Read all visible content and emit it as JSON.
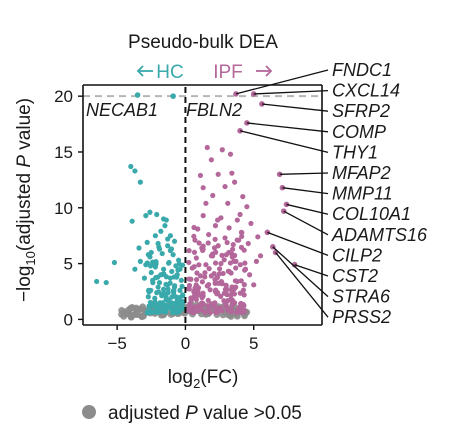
{
  "chart_data": {
    "type": "scatter",
    "title": "Pseudo-bulk DEA",
    "direction_labels": {
      "left": "HC",
      "right": "IPF"
    },
    "xlabel": {
      "prefix": "log",
      "sub": "2",
      "suffix": "(FC)"
    },
    "ylabel": {
      "prefix": "−log",
      "sub": "10",
      "mid": "(adjusted ",
      "ital": "P",
      "suffix": " value)"
    },
    "xlim": [
      -7.5,
      10
    ],
    "ylim": [
      -0.5,
      21
    ],
    "x_ticks": [
      -5,
      0,
      5
    ],
    "x_tick_labels": [
      "−5",
      "0",
      "5"
    ],
    "y_ticks": [
      0,
      5,
      10,
      15,
      20
    ],
    "y_tick_labels": [
      "0",
      "5",
      "10",
      "15",
      "20"
    ],
    "cap_line_y": 20,
    "colors": {
      "hc": "#3aa9ac",
      "ipf": "#b3679a",
      "nonsig": "#8c8c8c"
    },
    "legend": {
      "prefix": "adjusted ",
      "ital": "P",
      "suffix": " value >0.05"
    },
    "hc_highlight_points": [
      {
        "x": -3.5,
        "y": 20.1,
        "label": "NECAB1"
      },
      {
        "x": -0.9,
        "y": 20.0,
        "label": "FBLN2"
      }
    ],
    "ipf_labeled_points": [
      {
        "gene": "FNDC1",
        "x": 3.7,
        "y": 20.2
      },
      {
        "gene": "CXCL14",
        "x": 5.0,
        "y": 20.2
      },
      {
        "gene": "SFRP2",
        "x": 5.6,
        "y": 19.3
      },
      {
        "gene": "COMP",
        "x": 4.5,
        "y": 17.6
      },
      {
        "gene": "THY1",
        "x": 4.0,
        "y": 16.9
      },
      {
        "gene": "MFAP2",
        "x": 6.9,
        "y": 13.0
      },
      {
        "gene": "MMP11",
        "x": 7.1,
        "y": 11.8
      },
      {
        "gene": "COL10A1",
        "x": 7.4,
        "y": 10.3
      },
      {
        "gene": "ADAMTS16",
        "x": 7.2,
        "y": 9.7
      },
      {
        "gene": "CILP2",
        "x": 6.0,
        "y": 7.8
      },
      {
        "gene": "CST2",
        "x": 8.0,
        "y": 4.9
      },
      {
        "gene": "STRA6",
        "x": 6.4,
        "y": 6.5
      },
      {
        "gene": "PRSS2",
        "x": 6.6,
        "y": 6.0
      }
    ],
    "hc_points": [
      [
        -4.0,
        13.7
      ],
      [
        -3.7,
        13.3
      ],
      [
        -3.3,
        12.3
      ],
      [
        -2.9,
        9.3
      ],
      [
        -2.6,
        9.6
      ],
      [
        -3.9,
        8.8
      ],
      [
        -2.1,
        9.4
      ],
      [
        -1.6,
        9.0
      ],
      [
        -1.4,
        8.9
      ],
      [
        -1.5,
        8.4
      ],
      [
        -1.8,
        7.9
      ],
      [
        -2.2,
        7.5
      ],
      [
        -3.4,
        6.4
      ],
      [
        -3.3,
        5.2
      ],
      [
        -3.7,
        4.5
      ],
      [
        -5.2,
        5.1
      ],
      [
        -6.5,
        3.4
      ],
      [
        -5.8,
        3.3
      ],
      [
        -2.8,
        6.9
      ],
      [
        -2.0,
        6.8
      ],
      [
        -1.3,
        6.6
      ],
      [
        -2.5,
        6.0
      ],
      [
        -1.7,
        5.9
      ],
      [
        -0.9,
        5.8
      ],
      [
        -2.9,
        4.9
      ],
      [
        -2.2,
        4.7
      ],
      [
        -1.6,
        4.5
      ],
      [
        -1.0,
        4.3
      ],
      [
        -0.6,
        4.0
      ],
      [
        -0.3,
        3.5
      ],
      [
        -3.0,
        3.7
      ],
      [
        -2.4,
        3.5
      ],
      [
        -1.9,
        3.3
      ],
      [
        -1.3,
        3.1
      ],
      [
        -0.8,
        2.9
      ],
      [
        -0.4,
        2.6
      ],
      [
        -2.7,
        2.6
      ],
      [
        -2.1,
        2.4
      ],
      [
        -1.5,
        2.2
      ],
      [
        -1.0,
        2.0
      ],
      [
        -0.6,
        1.8
      ],
      [
        -0.2,
        1.6
      ],
      [
        -2.3,
        1.5
      ],
      [
        -1.8,
        1.3
      ],
      [
        -1.2,
        1.2
      ],
      [
        -0.7,
        1.1
      ],
      [
        -0.3,
        0.9
      ],
      [
        -1.4,
        0.9
      ],
      [
        -1.1,
        7.5
      ],
      [
        -1.3,
        7.2
      ],
      [
        -0.8,
        7.0
      ],
      [
        -1.9,
        6.3
      ],
      [
        -0.5,
        5.3
      ],
      [
        -2.6,
        5.6
      ],
      [
        -1.2,
        5.1
      ],
      [
        -0.7,
        4.8
      ],
      [
        -1.8,
        4.0
      ],
      [
        -2.5,
        4.2
      ],
      [
        -0.4,
        4.5
      ],
      [
        -1.1,
        3.7
      ],
      [
        -2.0,
        2.9
      ],
      [
        -1.6,
        2.7
      ],
      [
        -0.9,
        2.5
      ],
      [
        -0.2,
        2.2
      ],
      [
        -1.3,
        1.7
      ],
      [
        -0.5,
        1.4
      ]
    ],
    "ipf_points": [
      [
        2.7,
        15.2
      ],
      [
        3.3,
        14.8
      ],
      [
        1.6,
        15.4
      ],
      [
        1.9,
        14.3
      ],
      [
        1.3,
        11.8
      ],
      [
        3.4,
        13.1
      ],
      [
        2.4,
        13.0
      ],
      [
        1.1,
        12.9
      ],
      [
        3.6,
        12.3
      ],
      [
        2.9,
        11.9
      ],
      [
        4.2,
        11.0
      ],
      [
        2.0,
        11.1
      ],
      [
        3.1,
        10.4
      ],
      [
        1.5,
        10.4
      ],
      [
        4.5,
        10.1
      ],
      [
        5.3,
        7.4
      ],
      [
        5.5,
        5.7
      ],
      [
        3.8,
        8.9
      ],
      [
        2.6,
        9.1
      ],
      [
        1.3,
        9.3
      ],
      [
        3.2,
        8.2
      ],
      [
        2.2,
        8.4
      ],
      [
        0.9,
        8.1
      ],
      [
        4.1,
        7.8
      ],
      [
        2.9,
        7.3
      ],
      [
        1.7,
        7.6
      ],
      [
        0.7,
        7.1
      ],
      [
        3.5,
        6.7
      ],
      [
        2.4,
        6.6
      ],
      [
        1.2,
        6.4
      ],
      [
        4.3,
        6.2
      ],
      [
        3.0,
        5.8
      ],
      [
        1.9,
        5.7
      ],
      [
        0.8,
        5.5
      ],
      [
        3.7,
        5.2
      ],
      [
        2.6,
        5.0
      ],
      [
        1.5,
        4.9
      ],
      [
        0.5,
        4.6
      ],
      [
        4.4,
        4.5
      ],
      [
        3.2,
        4.3
      ],
      [
        2.1,
        4.1
      ],
      [
        1.1,
        3.9
      ],
      [
        0.4,
        3.6
      ],
      [
        3.8,
        3.4
      ],
      [
        2.7,
        3.2
      ],
      [
        1.6,
        3.0
      ],
      [
        0.7,
        2.8
      ],
      [
        3.4,
        2.5
      ],
      [
        2.3,
        2.3
      ],
      [
        1.3,
        2.1
      ],
      [
        0.5,
        1.9
      ],
      [
        2.9,
        1.6
      ],
      [
        1.9,
        1.4
      ],
      [
        0.9,
        1.2
      ],
      [
        0.3,
        1.0
      ],
      [
        4.0,
        9.4
      ],
      [
        4.8,
        8.6
      ],
      [
        3.9,
        7.1
      ],
      [
        4.6,
        6.8
      ],
      [
        5.0,
        3.1
      ],
      [
        4.3,
        2.2
      ],
      [
        3.6,
        1.5
      ],
      [
        2.5,
        0.9
      ],
      [
        1.4,
        0.7
      ],
      [
        5.2,
        5.2
      ],
      [
        4.7,
        4.0
      ]
    ]
  }
}
